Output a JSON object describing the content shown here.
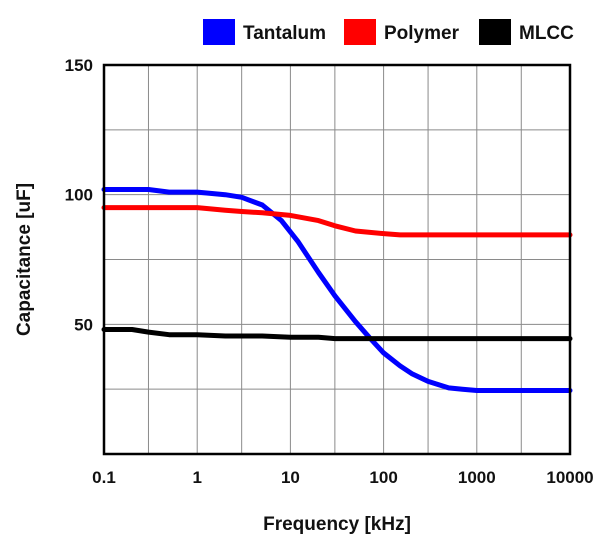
{
  "chart_data": {
    "type": "line",
    "title": "",
    "xlabel": "Frequency [kHz]",
    "ylabel": "Capacitance [uF]",
    "xscale": "log",
    "xlim": [
      0.1,
      10000
    ],
    "ylim": [
      0,
      150
    ],
    "x_ticks": [
      0.1,
      1,
      10,
      100,
      1000,
      10000
    ],
    "x_tick_labels": [
      "0.1",
      "1",
      "10",
      "100",
      "1000",
      "10000"
    ],
    "y_ticks": [
      50,
      100,
      150
    ],
    "y_tick_labels": [
      "50",
      "100",
      "150"
    ],
    "y_minor_gridlines": [
      25,
      75,
      125
    ],
    "x_minor_gridlines": [
      0.3,
      3,
      30,
      300,
      3000
    ],
    "grid": true,
    "legend_position": "top-right",
    "series": [
      {
        "name": "Tantalum",
        "color": "#0000ff",
        "points": [
          [
            0.1,
            102
          ],
          [
            0.2,
            102
          ],
          [
            0.3,
            102
          ],
          [
            0.5,
            101
          ],
          [
            1,
            101
          ],
          [
            2,
            100
          ],
          [
            3,
            99
          ],
          [
            5,
            96
          ],
          [
            8,
            90
          ],
          [
            12,
            82
          ],
          [
            20,
            70
          ],
          [
            30,
            61
          ],
          [
            50,
            51
          ],
          [
            70,
            45
          ],
          [
            100,
            39
          ],
          [
            150,
            34
          ],
          [
            200,
            31
          ],
          [
            300,
            28
          ],
          [
            500,
            25.5
          ],
          [
            700,
            25
          ],
          [
            1000,
            24.5
          ],
          [
            3000,
            24.5
          ],
          [
            10000,
            24.5
          ]
        ]
      },
      {
        "name": "Polymer",
        "color": "#ff0000",
        "points": [
          [
            0.1,
            95
          ],
          [
            0.3,
            95
          ],
          [
            1,
            95
          ],
          [
            2,
            94
          ],
          [
            3,
            93.5
          ],
          [
            5,
            93
          ],
          [
            10,
            92
          ],
          [
            20,
            90
          ],
          [
            30,
            88
          ],
          [
            50,
            86
          ],
          [
            100,
            85
          ],
          [
            150,
            84.5
          ],
          [
            300,
            84.5
          ],
          [
            1000,
            84.5
          ],
          [
            10000,
            84.5
          ]
        ]
      },
      {
        "name": "MLCC",
        "color": "#000000",
        "points": [
          [
            0.1,
            48
          ],
          [
            0.2,
            48
          ],
          [
            0.3,
            47
          ],
          [
            0.5,
            46
          ],
          [
            1,
            46
          ],
          [
            2,
            45.5
          ],
          [
            5,
            45.5
          ],
          [
            10,
            45
          ],
          [
            20,
            45
          ],
          [
            30,
            44.5
          ],
          [
            100,
            44.5
          ],
          [
            1000,
            44.5
          ],
          [
            10000,
            44.5
          ]
        ]
      }
    ]
  }
}
